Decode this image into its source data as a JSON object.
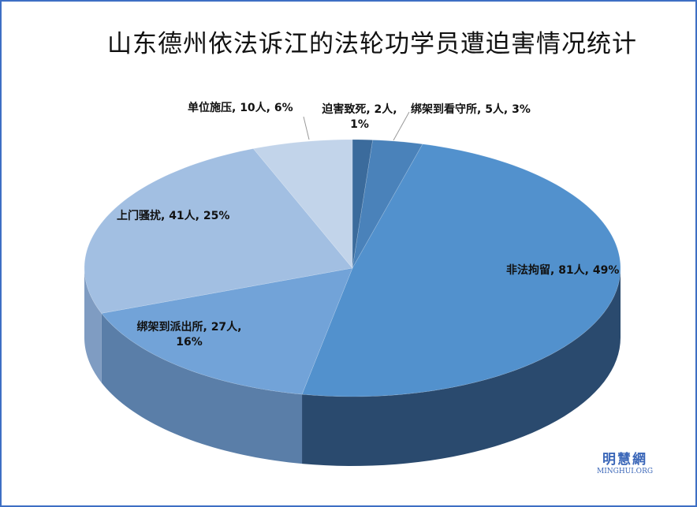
{
  "chart_data": {
    "type": "pie",
    "style": "3d",
    "title": "山东德州依法诉江的法轮功学员遭迫害情况统计",
    "slices": [
      {
        "label": "迫害致死",
        "value": 2,
        "percent": "1%",
        "color": "#3b6b9c",
        "side": "#2c5078"
      },
      {
        "label": "绑架到看守所",
        "value": 5,
        "percent": "3%",
        "color": "#4a82ba",
        "side": "#34608c"
      },
      {
        "label": "非法拘留",
        "value": 81,
        "percent": "49%",
        "color": "#5291cd",
        "side": "#2a4a6e"
      },
      {
        "label": "绑架到派出所",
        "value": 27,
        "percent": "16%",
        "color": "#72a3d8",
        "side": "#5a7ea8"
      },
      {
        "label": "上门骚扰",
        "value": 41,
        "percent": "25%",
        "color": "#a2bfe2",
        "side": "#7f9cc2"
      },
      {
        "label": "单位施压",
        "value": 10,
        "percent": "6%",
        "color": "#c2d4ea",
        "side": "#9fb3cf"
      }
    ],
    "unit": "人",
    "legend": "none",
    "data_labels": [
      "迫害致死, 2人, 1%",
      "绑架到看守所, 5人, 3%",
      "非法拘留, 81人, 49%",
      "绑架到派出所, 27人, 16%",
      "上门骚扰, 41人, 25%",
      "单位施压, 10人, 6%"
    ]
  },
  "watermark": {
    "cn": "明慧網",
    "en": "MINGHUI.ORG"
  }
}
